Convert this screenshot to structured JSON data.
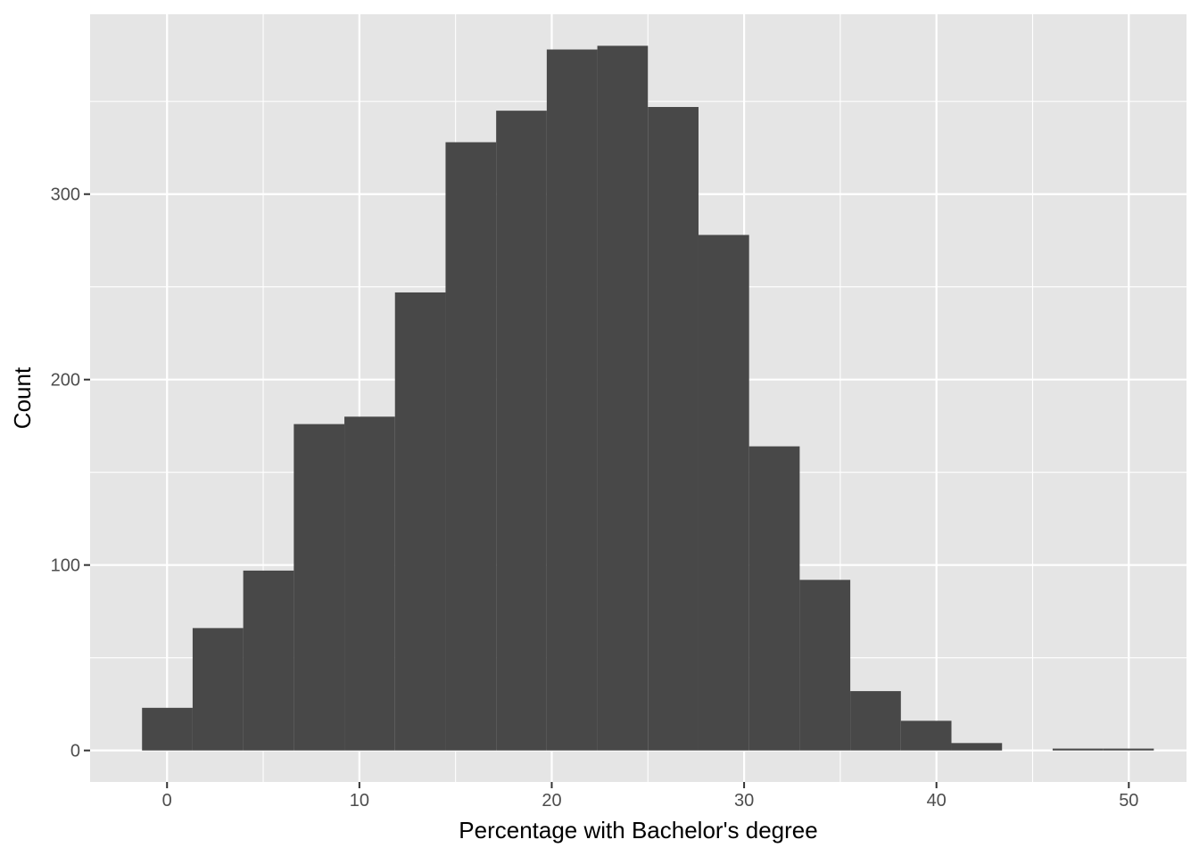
{
  "chart_data": {
    "type": "bar",
    "subtype": "histogram",
    "title": "",
    "xlabel": "Percentage with Bachelor's degree",
    "ylabel": "Count",
    "xlim": [
      -4,
      53
    ],
    "ylim": [
      -17,
      397
    ],
    "x_ticks": [
      0,
      10,
      20,
      30,
      40,
      50
    ],
    "y_ticks": [
      0,
      100,
      200,
      300
    ],
    "x_minor_breaks": [
      -5,
      5,
      15,
      25,
      35,
      45
    ],
    "y_minor_breaks": [
      50,
      150,
      250,
      350
    ],
    "grid": true,
    "legend": "none",
    "bin_width": 2.63,
    "bin_edges": [
      -1.3,
      1.33,
      3.96,
      6.59,
      9.22,
      11.85,
      14.48,
      17.11,
      19.74,
      22.37,
      25.0,
      27.63,
      30.26,
      32.89,
      35.52,
      38.15,
      40.78,
      43.41,
      46.04,
      48.67,
      51.3
    ],
    "values": [
      23,
      66,
      97,
      176,
      180,
      247,
      328,
      345,
      378,
      380,
      347,
      278,
      164,
      92,
      32,
      16,
      4,
      0,
      1,
      1
    ],
    "colors": {
      "panel": "#e5e5e5",
      "grid": "#ffffff",
      "bar": "#484848",
      "tick_text": "#4d4d4d",
      "tick_mark": "#333333",
      "axis_title": "#000000"
    }
  }
}
